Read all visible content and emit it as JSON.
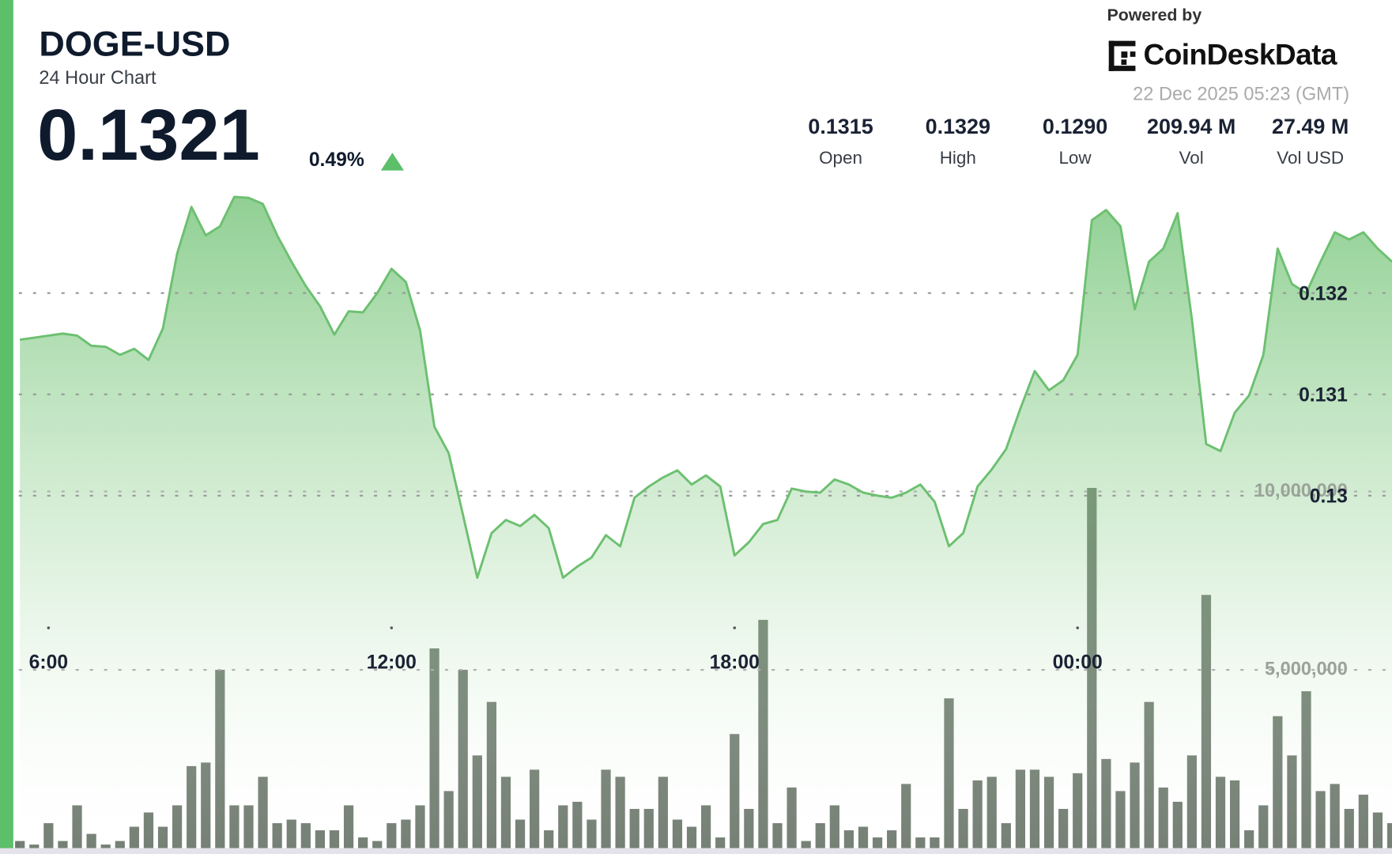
{
  "header": {
    "title": "DOGE-USD",
    "subtitle": "24 Hour Chart",
    "price": "0.1321",
    "change": "0.49%",
    "powered_by": "Powered by",
    "brand": "CoinDeskData",
    "timestamp": "22 Dec 2025 05:23 (GMT)",
    "stats": [
      {
        "value": "0.1315",
        "label": "Open"
      },
      {
        "value": "0.1329",
        "label": "High"
      },
      {
        "value": "0.1290",
        "label": "Low"
      },
      {
        "value": "209.94 M",
        "label": "Vol"
      },
      {
        "value": "27.49 M",
        "label": "Vol USD"
      }
    ]
  },
  "chart_data": [
    {
      "type": "area",
      "color": "#6cc070",
      "x": [
        5.5,
        5.75,
        6,
        6.25,
        6.5,
        6.75,
        7,
        7.25,
        7.5,
        7.75,
        8,
        8.25,
        8.5,
        8.75,
        9,
        9.25,
        9.5,
        9.75,
        10,
        10.25,
        10.5,
        10.75,
        11,
        11.25,
        11.5,
        11.75,
        12,
        12.25,
        12.5,
        12.75,
        13,
        13.25,
        13.5,
        13.75,
        14,
        14.25,
        14.5,
        14.75,
        15,
        15.25,
        15.5,
        15.75,
        16,
        16.25,
        16.5,
        16.75,
        17,
        17.25,
        17.5,
        17.75,
        18,
        18.25,
        18.5,
        18.75,
        19,
        19.25,
        19.5,
        19.75,
        20,
        20.25,
        20.5,
        20.75,
        21,
        21.25,
        21.5,
        21.75,
        22,
        22.25,
        22.5,
        22.75,
        23,
        23.25,
        23.5,
        23.75,
        24,
        24.25,
        24.5,
        24.75,
        25,
        25.25,
        25.5,
        25.75,
        26,
        26.25,
        26.5,
        26.75,
        27,
        27.25,
        27.5,
        27.75,
        28,
        28.25,
        28.5,
        28.75,
        29,
        29.25,
        29.5
      ],
      "values": [
        0.13154,
        0.13156,
        0.13158,
        0.1316,
        0.13158,
        0.13148,
        0.13147,
        0.13139,
        0.13145,
        0.13134,
        0.13165,
        0.13239,
        0.13285,
        0.13257,
        0.13266,
        0.13295,
        0.13294,
        0.13288,
        0.13257,
        0.13231,
        0.13207,
        0.13187,
        0.13159,
        0.13182,
        0.13181,
        0.132,
        0.13224,
        0.13211,
        0.13163,
        0.13068,
        0.13042,
        0.12981,
        0.12919,
        0.12963,
        0.12976,
        0.1297,
        0.12981,
        0.12968,
        0.12919,
        0.1293,
        0.12939,
        0.12961,
        0.1295,
        0.12998,
        0.13009,
        0.13018,
        0.13025,
        0.13011,
        0.1302,
        0.13009,
        0.12941,
        0.12954,
        0.12972,
        0.12976,
        0.13007,
        0.13004,
        0.13003,
        0.13016,
        0.13011,
        0.13003,
        0.13,
        0.12998,
        0.13003,
        0.13011,
        0.12994,
        0.1295,
        0.12963,
        0.13009,
        0.13026,
        0.13046,
        0.13086,
        0.13123,
        0.13104,
        0.13114,
        0.13139,
        0.13272,
        0.13282,
        0.13266,
        0.13184,
        0.13231,
        0.13244,
        0.13279,
        0.13174,
        0.13051,
        0.13044,
        0.13082,
        0.13099,
        0.13139,
        0.13244,
        0.13209,
        0.132,
        0.13231,
        0.1326,
        0.13253,
        0.1326,
        0.13244,
        0.13231
      ],
      "xlim": [
        5.4,
        29.5
      ],
      "xticks": [
        {
          "value": 6,
          "label": "6:00"
        },
        {
          "value": 12,
          "label": "12:00"
        },
        {
          "value": 18,
          "label": "18:00"
        },
        {
          "value": 24,
          "label": "00:00"
        }
      ],
      "ylim": [
        0.12652,
        0.13314
      ],
      "yticks": [
        0.13,
        0.131,
        0.132
      ],
      "grid": true
    },
    {
      "type": "bar",
      "color": "#5f6b5f",
      "x": [
        5.5,
        5.75,
        6,
        6.25,
        6.5,
        6.75,
        7,
        7.25,
        7.5,
        7.75,
        8,
        8.25,
        8.5,
        8.75,
        9,
        9.25,
        9.5,
        9.75,
        10,
        10.25,
        10.5,
        10.75,
        11,
        11.25,
        11.5,
        11.75,
        12,
        12.25,
        12.5,
        12.75,
        13,
        13.25,
        13.5,
        13.75,
        14,
        14.25,
        14.5,
        14.75,
        15,
        15.25,
        15.5,
        15.75,
        16,
        16.25,
        16.5,
        16.75,
        17,
        17.25,
        17.5,
        17.75,
        18,
        18.25,
        18.5,
        18.75,
        19,
        19.25,
        19.5,
        19.75,
        20,
        20.25,
        20.5,
        20.75,
        21,
        21.25,
        21.5,
        21.75,
        22,
        22.25,
        22.5,
        22.75,
        23,
        23.25,
        23.5,
        23.75,
        24,
        24.25,
        24.5,
        24.75,
        25,
        25.25,
        25.5,
        25.75,
        26,
        26.25,
        26.5,
        26.75,
        27,
        27.25,
        27.5,
        27.75,
        28,
        28.25,
        28.5,
        28.75,
        29,
        29.25,
        29.5
      ],
      "values": [
        200000,
        100000,
        700000,
        200000,
        1200000,
        400000,
        100000,
        200000,
        600000,
        1000000,
        600000,
        1200000,
        2300000,
        2400000,
        5000000,
        1200000,
        1200000,
        2000000,
        700000,
        800000,
        700000,
        500000,
        500000,
        1200000,
        300000,
        200000,
        700000,
        800000,
        1200000,
        5600000,
        1600000,
        5000000,
        2600000,
        4100000,
        2000000,
        800000,
        2200000,
        500000,
        1200000,
        1300000,
        800000,
        2200000,
        2000000,
        1100000,
        1100000,
        2000000,
        800000,
        600000,
        1200000,
        300000,
        3200000,
        1100000,
        6400000,
        700000,
        1700000,
        200000,
        700000,
        1200000,
        500000,
        600000,
        300000,
        500000,
        1800000,
        300000,
        300000,
        4200000,
        1100000,
        1900000,
        2000000,
        700000,
        2200000,
        2200000,
        2000000,
        1100000,
        2100000,
        10100000,
        2500000,
        1600000,
        2400000,
        4100000,
        1700000,
        1300000,
        2600000,
        7100000,
        2000000,
        1900000,
        500000,
        1200000,
        3700000,
        2600000,
        4400000,
        1600000,
        1800000,
        1100000,
        1500000,
        1000000,
        700000
      ],
      "xlim": [
        5.4,
        29.5
      ],
      "ylim": [
        0,
        18800000
      ],
      "yticks": [
        {
          "value": 5000000,
          "label": "5,000,000"
        },
        {
          "value": 10000000,
          "label": "10,000,000"
        }
      ],
      "grid": true
    }
  ]
}
